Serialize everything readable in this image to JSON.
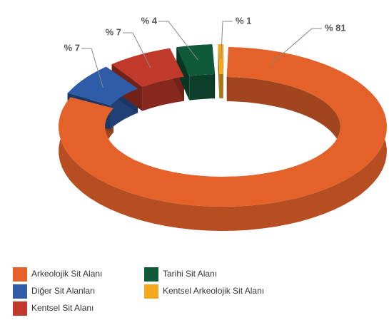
{
  "chart_data": {
    "type": "donut3d",
    "categories": [
      "Arkeolojik Sit Alanı",
      "Diğer Sit Alanları",
      "Kentsel Sit Alanı",
      "Tarihi Sit Alanı",
      "Kentsel Arkeolojik Sit Alanı"
    ],
    "values": [
      81,
      7,
      7,
      4,
      1
    ],
    "value_labels": [
      "% 81",
      "% 7",
      "% 7",
      "% 4",
      "% 1"
    ],
    "colors": [
      "#e4622a",
      "#2e5ca8",
      "#c0392b",
      "#0f5a3a",
      "#f4a81d"
    ],
    "legend": "bottom"
  }
}
